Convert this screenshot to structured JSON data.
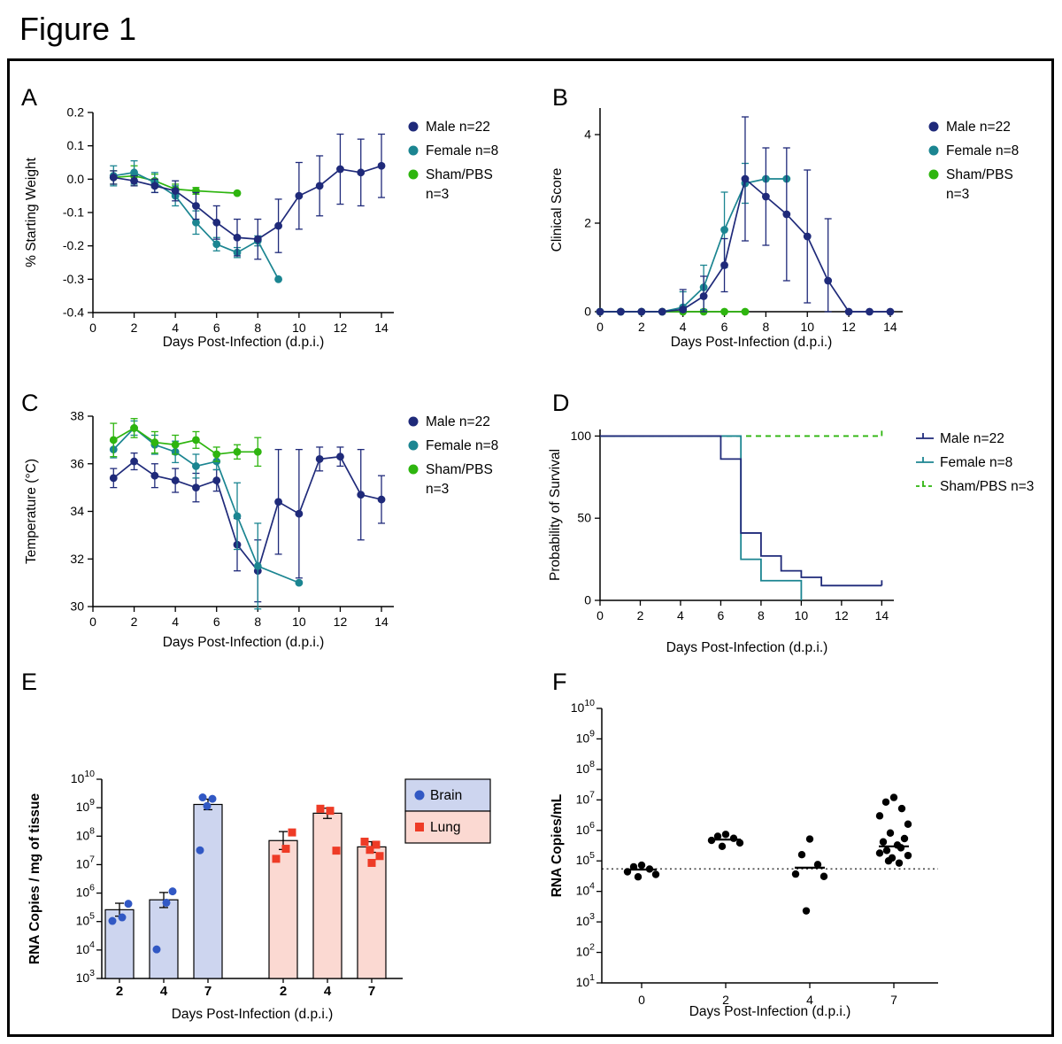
{
  "figure_title": "Figure 1",
  "colors": {
    "male": "#1f2a7a",
    "female": "#1b8591",
    "sham": "#2eb50f",
    "brain_point": "#3158c4",
    "brain_fill": "#cdd5ef",
    "lung_point": "#ee3b26",
    "lung_fill": "#fbd9d2"
  },
  "chart_data": {
    "a": {
      "type": "line",
      "label": "A",
      "xlabel": "Days Post-Infection (d.p.i.)",
      "ylabel": "% Starting Weight",
      "xlim": [
        0,
        14.6
      ],
      "ylim": [
        -0.4,
        0.2
      ],
      "xticks": [
        {
          "v": 0,
          "t": "0"
        },
        {
          "v": 2,
          "t": "2"
        },
        {
          "v": 4,
          "t": "4"
        },
        {
          "v": 6,
          "t": "6"
        },
        {
          "v": 8,
          "t": "8"
        },
        {
          "v": 10,
          "t": "10"
        },
        {
          "v": 12,
          "t": "12"
        },
        {
          "v": 14,
          "t": "14"
        }
      ],
      "yticks": [
        {
          "v": 0.2,
          "t": "0.2"
        },
        {
          "v": 0.1,
          "t": "0.1"
        },
        {
          "v": 0,
          "t": "0.0"
        },
        {
          "v": -0.1,
          "t": "-0.1"
        },
        {
          "v": -0.2,
          "t": "-0.2"
        },
        {
          "v": -0.3,
          "t": "-0.3"
        },
        {
          "v": -0.4,
          "t": "-0.4"
        }
      ],
      "legend": [
        {
          "key": "male",
          "lines": [
            "Male n=22"
          ]
        },
        {
          "key": "female",
          "lines": [
            "Female n=8"
          ]
        },
        {
          "key": "sham",
          "lines": [
            "Sham/PBS",
            "n=3"
          ]
        }
      ],
      "series": [
        {
          "key": "sham",
          "x": [
            1,
            2,
            3,
            4,
            5,
            7
          ],
          "y": [
            0.005,
            0.01,
            -0.005,
            -0.03,
            -0.035,
            -0.042
          ],
          "err": [
            0.02,
            0.03,
            0.02,
            0.015,
            0.01,
            0
          ]
        },
        {
          "key": "female",
          "x": [
            1,
            2,
            3,
            4,
            5,
            6,
            7,
            8,
            9
          ],
          "y": [
            0.01,
            0.02,
            -0.01,
            -0.05,
            -0.13,
            -0.195,
            -0.22,
            -0.185,
            -0.3
          ],
          "err": [
            0.03,
            0.035,
            0.03,
            0.03,
            0.035,
            0.02,
            0.015,
            0.015,
            0
          ]
        },
        {
          "key": "male",
          "x": [
            1,
            2,
            3,
            4,
            5,
            6,
            7,
            8,
            9,
            10,
            11,
            12,
            13,
            14
          ],
          "y": [
            0.005,
            -0.005,
            -0.02,
            -0.035,
            -0.08,
            -0.13,
            -0.175,
            -0.18,
            -0.14,
            -0.05,
            -0.02,
            0.03,
            0.02,
            0.04
          ],
          "err": [
            0.02,
            0.015,
            0.02,
            0.03,
            0.04,
            0.05,
            0.055,
            0.06,
            0.08,
            0.1,
            0.09,
            0.105,
            0.1,
            0.095
          ]
        }
      ]
    },
    "b": {
      "type": "line",
      "label": "B",
      "xlabel": "Days Post-Infection (d.p.i.)",
      "ylabel": "Clinical Score",
      "xlim": [
        0,
        14.6
      ],
      "ylim": [
        0,
        4.6
      ],
      "xticks": [
        {
          "v": 0,
          "t": "0"
        },
        {
          "v": 2,
          "t": "2"
        },
        {
          "v": 4,
          "t": "4"
        },
        {
          "v": 6,
          "t": "6"
        },
        {
          "v": 8,
          "t": "8"
        },
        {
          "v": 10,
          "t": "10"
        },
        {
          "v": 12,
          "t": "12"
        },
        {
          "v": 14,
          "t": "14"
        }
      ],
      "yticks": [
        {
          "v": 0,
          "t": "0"
        },
        {
          "v": 2,
          "t": "2"
        },
        {
          "v": 4,
          "t": "4"
        }
      ],
      "legend": [
        {
          "key": "male",
          "lines": [
            "Male n=22"
          ]
        },
        {
          "key": "female",
          "lines": [
            "Female n=8"
          ]
        },
        {
          "key": "sham",
          "lines": [
            "Sham/PBS",
            "n=3"
          ]
        }
      ],
      "series": [
        {
          "key": "sham",
          "x": [
            0,
            1,
            2,
            3,
            4,
            5,
            6,
            7
          ],
          "y": [
            0,
            0,
            0,
            0,
            0,
            0,
            0,
            0
          ],
          "err": [
            0,
            0,
            0,
            0,
            0,
            0,
            0,
            0
          ]
        },
        {
          "key": "female",
          "x": [
            0,
            1,
            2,
            3,
            4,
            5,
            6,
            7,
            8,
            9
          ],
          "y": [
            0,
            0,
            0,
            0,
            0.1,
            0.55,
            1.85,
            2.9,
            3.0,
            3.0
          ],
          "err": [
            0,
            0,
            0,
            0,
            0.35,
            0.5,
            0.85,
            0.45,
            0,
            0
          ]
        },
        {
          "key": "male",
          "x": [
            0,
            1,
            2,
            3,
            4,
            5,
            6,
            7,
            8,
            9,
            10,
            11,
            12,
            13,
            14
          ],
          "y": [
            0,
            0,
            0,
            0,
            0.05,
            0.35,
            1.05,
            3.0,
            2.6,
            2.2,
            1.7,
            0.7,
            0,
            0,
            0
          ],
          "err": [
            0,
            0,
            0,
            0,
            0.45,
            0.45,
            0.6,
            1.4,
            1.1,
            1.5,
            1.5,
            1.4,
            0,
            0,
            0
          ]
        }
      ]
    },
    "c": {
      "type": "line",
      "label": "C",
      "xlabel": "Days Post-Infection (d.p.i.)",
      "ylabel": "Temperature (°C)",
      "xlim": [
        0,
        14.6
      ],
      "ylim": [
        30,
        38
      ],
      "xticks": [
        {
          "v": 0,
          "t": "0"
        },
        {
          "v": 2,
          "t": "2"
        },
        {
          "v": 4,
          "t": "4"
        },
        {
          "v": 6,
          "t": "6"
        },
        {
          "v": 8,
          "t": "8"
        },
        {
          "v": 10,
          "t": "10"
        },
        {
          "v": 12,
          "t": "12"
        },
        {
          "v": 14,
          "t": "14"
        }
      ],
      "yticks": [
        {
          "v": 30,
          "t": "30"
        },
        {
          "v": 32,
          "t": "32"
        },
        {
          "v": 34,
          "t": "34"
        },
        {
          "v": 36,
          "t": "36"
        },
        {
          "v": 38,
          "t": "38"
        }
      ],
      "legend": [
        {
          "key": "male",
          "lines": [
            "Male n=22"
          ]
        },
        {
          "key": "female",
          "lines": [
            "Female n=8"
          ]
        },
        {
          "key": "sham",
          "lines": [
            "Sham/PBS",
            "n=3"
          ]
        }
      ],
      "series": [
        {
          "key": "male",
          "x": [
            1,
            2,
            3,
            4,
            5,
            6,
            7,
            8,
            9,
            10,
            11,
            12,
            13,
            14
          ],
          "y": [
            35.4,
            36.1,
            35.5,
            35.3,
            35.0,
            35.3,
            32.6,
            31.5,
            34.4,
            33.9,
            36.2,
            36.3,
            34.7,
            34.5
          ],
          "err": [
            0.4,
            0.35,
            0.5,
            0.5,
            0.6,
            0.45,
            1.1,
            1.3,
            2.2,
            2.7,
            0.5,
            0.4,
            1.9,
            1.0
          ]
        },
        {
          "key": "female",
          "x": [
            1,
            2,
            3,
            4,
            5,
            6,
            7,
            8,
            10
          ],
          "y": [
            36.6,
            37.5,
            36.8,
            36.5,
            35.9,
            36.1,
            33.8,
            31.7,
            31.0
          ],
          "err": [
            0.35,
            0.3,
            0.4,
            0.45,
            0.5,
            0.35,
            1.4,
            1.8,
            0
          ]
        },
        {
          "key": "sham",
          "x": [
            1,
            2,
            3,
            4,
            5,
            6,
            7,
            8
          ],
          "y": [
            37.0,
            37.5,
            36.9,
            36.8,
            37.0,
            36.4,
            36.5,
            36.5
          ],
          "err": [
            0.7,
            0.4,
            0.45,
            0.4,
            0.35,
            0.3,
            0.3,
            0.6
          ]
        }
      ]
    },
    "d": {
      "type": "survival",
      "label": "D",
      "xlabel": "Days Post-Infection (d.p.i.)",
      "ylabel": "Probability of Survival",
      "xlim": [
        0,
        14.6
      ],
      "ylim": [
        0,
        104
      ],
      "xticks": [
        {
          "v": 0,
          "t": "0"
        },
        {
          "v": 2,
          "t": "2"
        },
        {
          "v": 4,
          "t": "4"
        },
        {
          "v": 6,
          "t": "6"
        },
        {
          "v": 8,
          "t": "8"
        },
        {
          "v": 10,
          "t": "10"
        },
        {
          "v": 12,
          "t": "12"
        },
        {
          "v": 14,
          "t": "14"
        }
      ],
      "yticks": [
        {
          "v": 0,
          "t": "0"
        },
        {
          "v": 50,
          "t": "50"
        },
        {
          "v": 100,
          "t": "100"
        }
      ],
      "legend": [
        {
          "key": "male",
          "style": "solid",
          "lines": [
            "Male n=22"
          ]
        },
        {
          "key": "female",
          "style": "solid",
          "lines": [
            "Female n=8"
          ]
        },
        {
          "key": "sham",
          "style": "dashed",
          "lines": [
            "Sham/PBS n=3"
          ]
        }
      ],
      "series": [
        {
          "key": "sham",
          "style": "dashed",
          "points": [
            [
              0,
              100
            ],
            [
              14,
              100
            ]
          ],
          "censor": [
            [
              14,
              100
            ]
          ]
        },
        {
          "key": "female",
          "style": "solid",
          "points": [
            [
              0,
              100
            ],
            [
              7,
              100
            ],
            [
              7,
              25
            ],
            [
              8,
              25
            ],
            [
              8,
              12
            ],
            [
              10,
              12
            ],
            [
              10,
              0
            ]
          ]
        },
        {
          "key": "male",
          "style": "solid",
          "points": [
            [
              0,
              100
            ],
            [
              6,
              100
            ],
            [
              6,
              86
            ],
            [
              7,
              86
            ],
            [
              7,
              41
            ],
            [
              8,
              41
            ],
            [
              8,
              27
            ],
            [
              9,
              27
            ],
            [
              9,
              18
            ],
            [
              10,
              18
            ],
            [
              10,
              14
            ],
            [
              11,
              14
            ],
            [
              11,
              9
            ],
            [
              14,
              9
            ]
          ],
          "censor": [
            [
              14,
              9
            ]
          ]
        }
      ]
    },
    "e": {
      "type": "bar",
      "label": "E",
      "xlabel": "Days Post-Infection (d.p.i.)",
      "ylabel": "RNA Copies / mg of tissue",
      "ylog_min_exp": 3,
      "ylog_max_exp": 10,
      "legend": [
        {
          "key": "brain",
          "label": "Brain"
        },
        {
          "key": "lung",
          "label": "Lung"
        }
      ],
      "groups": [
        {
          "tissue": "brain",
          "day": "2",
          "mean": 260000.0,
          "sem_hi": 440000.0,
          "sem_lo": 155000.0,
          "points": [
            105000.0,
            140000.0,
            420000.0
          ]
        },
        {
          "tissue": "brain",
          "day": "4",
          "mean": 580000.0,
          "sem_hi": 1050000.0,
          "sem_lo": 310000.0,
          "points": [
            10500.0,
            460000.0,
            1150000.0
          ]
        },
        {
          "tissue": "brain",
          "day": "7",
          "mean": 1300000000.0,
          "sem_hi": 2000000000.0,
          "sem_lo": 850000000.0,
          "points": [
            2300000000.0,
            2050000000.0,
            1150000000.0,
            32000000.0
          ]
        },
        {
          "tissue": "lung",
          "day": "2",
          "mean": 70000000.0,
          "sem_hi": 145000000.0,
          "sem_lo": 34000000.0,
          "points": [
            16000000.0,
            36000000.0,
            135000000.0
          ]
        },
        {
          "tissue": "lung",
          "day": "4",
          "mean": 640000000.0,
          "sem_hi": 960000000.0,
          "sem_lo": 420000000.0,
          "points": [
            920000000.0,
            780000000.0,
            31000000.0
          ]
        },
        {
          "tissue": "lung",
          "day": "7",
          "mean": 42000000.0,
          "sem_hi": 64000000.0,
          "sem_lo": 27000000.0,
          "points": [
            64000000.0,
            50000000.0,
            33000000.0,
            20000000.0,
            11500000.0
          ]
        }
      ]
    },
    "f": {
      "type": "scatter",
      "label": "F",
      "xlabel": "Days Post-Infection (d.p.i.)",
      "ylabel": "RNA Copies/mL",
      "ylog_min_exp": 1,
      "ylog_max_exp": 10,
      "lod": 55000.0,
      "groups": [
        {
          "day": "0",
          "median": 52000.0,
          "points": [
            72000.0,
            64000.0,
            54000.0,
            44000.0,
            36000.0,
            30000.0
          ]
        },
        {
          "day": "2",
          "median": 500000.0,
          "points": [
            740000.0,
            640000.0,
            550000.0,
            470000.0,
            390000.0,
            300000.0
          ]
        },
        {
          "day": "4",
          "median": 60000.0,
          "points": [
            520000.0,
            160000.0,
            76000.0,
            37000.0,
            31000.0,
            2300.0
          ]
        },
        {
          "day": "7",
          "median": 300000.0,
          "points": [
            12000000.0,
            8500000.0,
            5200000.0,
            3000000.0,
            1600000.0,
            820000.0,
            540000.0,
            420000.0,
            330000.0,
            270000.0,
            220000.0,
            180000.0,
            150000.0,
            125000.0,
            100000.0,
            85000.0
          ]
        }
      ]
    }
  }
}
